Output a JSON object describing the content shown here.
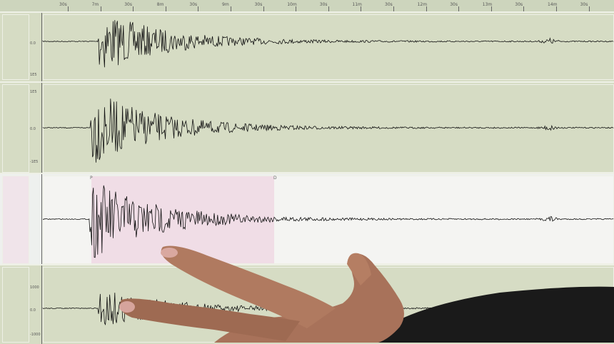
{
  "ruler": {
    "labels": [
      "30s",
      "7m",
      "30s",
      "8m",
      "30s",
      "9m",
      "30s",
      "10m",
      "30s",
      "11m",
      "30s",
      "12m",
      "30s",
      "13m",
      "30s",
      "14m",
      "30s"
    ]
  },
  "panels": [
    {
      "top_label": "",
      "zero_label": "0.0",
      "bottom_label": "1E5"
    },
    {
      "top_label": "1E5",
      "zero_label": "0.0",
      "bottom_label": "-1E5"
    },
    {
      "top_label": "",
      "zero_label": "",
      "bottom_label": ""
    },
    {
      "top_label": "1000",
      "zero_label": "0.0",
      "bottom_label": "-1000"
    }
  ],
  "phase_markers": {
    "p": "P",
    "d": "D"
  },
  "colors": {
    "screen": "#d6dcc4",
    "highlight": "#f0dde6",
    "trace": "#111111",
    "skin": "#b07a60",
    "sleeve": "#1a1a1a"
  }
}
